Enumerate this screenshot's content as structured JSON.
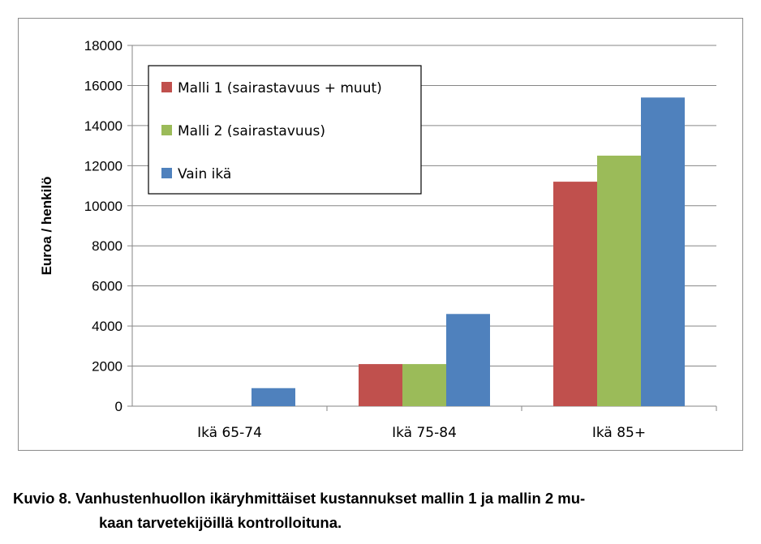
{
  "chart_data": {
    "type": "bar",
    "categories": [
      "Ikä 65-74",
      "Ikä 75-84",
      "Ikä 85+"
    ],
    "series": [
      {
        "name": "Malli 1 (sairastavuus + muut)",
        "color": "#c0504d",
        "values": [
          0,
          2100,
          11200
        ]
      },
      {
        "name": "Malli 2 (sairastavuus)",
        "color": "#9bbb59",
        "values": [
          0,
          2100,
          12500
        ]
      },
      {
        "name": "Vain ikä",
        "color": "#4f81bd",
        "values": [
          900,
          4600,
          15400
        ]
      }
    ],
    "ylabel": "Euroa / henkilö",
    "xlabel": "",
    "ylim": [
      0,
      18000
    ],
    "yticks": [
      "0",
      "2000",
      "4000",
      "6000",
      "8000",
      "10000",
      "12000",
      "14000",
      "16000",
      "18000"
    ],
    "grid": true,
    "legend_position": "top-left"
  },
  "caption": {
    "line1": "Kuvio 8. Vanhustenhuollon ikäryhmittäiset kustannukset mallin 1 ja mallin 2 mu-",
    "line2": "kaan tarvetekijöillä kontrolloituna."
  }
}
